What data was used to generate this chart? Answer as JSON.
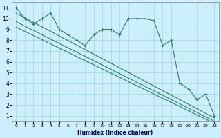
{
  "xlabel": "Humidex (Indice chaleur)",
  "bg_color": "#cceeff",
  "grid_color": "#aaddcc",
  "line_color": "#2a7a6a",
  "xlim": [
    -0.5,
    23.5
  ],
  "ylim": [
    0.5,
    11.5
  ],
  "xticks": [
    0,
    1,
    2,
    3,
    4,
    5,
    6,
    7,
    8,
    9,
    10,
    11,
    12,
    13,
    14,
    15,
    16,
    17,
    18,
    19,
    20,
    21,
    22,
    23
  ],
  "yticks": [
    1,
    2,
    3,
    4,
    5,
    6,
    7,
    8,
    9,
    10,
    11
  ],
  "line1_x": [
    0,
    1,
    2,
    3,
    4,
    5,
    6,
    7,
    8,
    9,
    10,
    11,
    12,
    13,
    14,
    15,
    16,
    17,
    18,
    19,
    20,
    21,
    22,
    23
  ],
  "line1_y": [
    11,
    10,
    9.5,
    10,
    10.5,
    9,
    8.5,
    8.0,
    7.5,
    8.5,
    9.0,
    9.0,
    8.5,
    10.0,
    10.0,
    10.0,
    9.8,
    7.5,
    8.0,
    4.0,
    3.5,
    2.5,
    3.0,
    1.0
  ],
  "line2_x": [
    0,
    23
  ],
  "line2_y": [
    10.5,
    0.8
  ],
  "line3_x": [
    0,
    23
  ],
  "line3_y": [
    9.7,
    0.5
  ],
  "line4_x": [
    0,
    23
  ],
  "line4_y": [
    9.2,
    0.3
  ]
}
